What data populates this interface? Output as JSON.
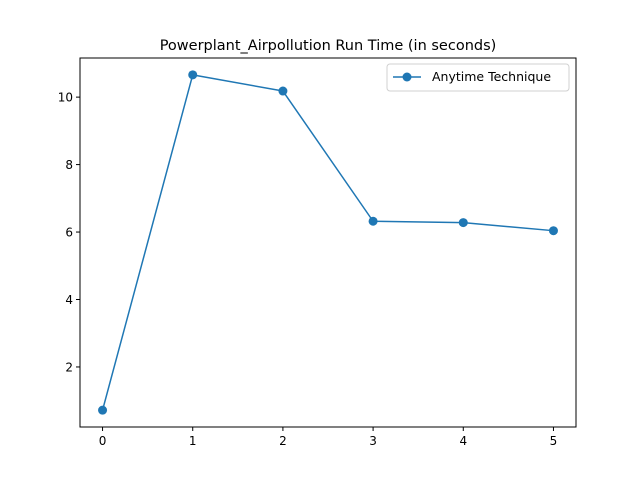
{
  "chart_data": {
    "type": "line",
    "title": "Powerplant_Airpollution Run Time (in seconds)",
    "xlabel": "",
    "ylabel": "",
    "x": [
      0,
      1,
      2,
      3,
      4,
      5
    ],
    "series": [
      {
        "name": "Anytime Technique",
        "values": [
          0.72,
          10.66,
          10.18,
          6.32,
          6.28,
          6.04
        ],
        "color": "#1f77b4",
        "marker": "circle"
      }
    ],
    "xlim": [
      -0.25,
      5.25
    ],
    "ylim": [
      0.22,
      11.16
    ],
    "xticks": [
      0,
      1,
      2,
      3,
      4,
      5
    ],
    "yticks": [
      2,
      4,
      6,
      8,
      10
    ],
    "grid": false,
    "legend_position": "top-right"
  }
}
